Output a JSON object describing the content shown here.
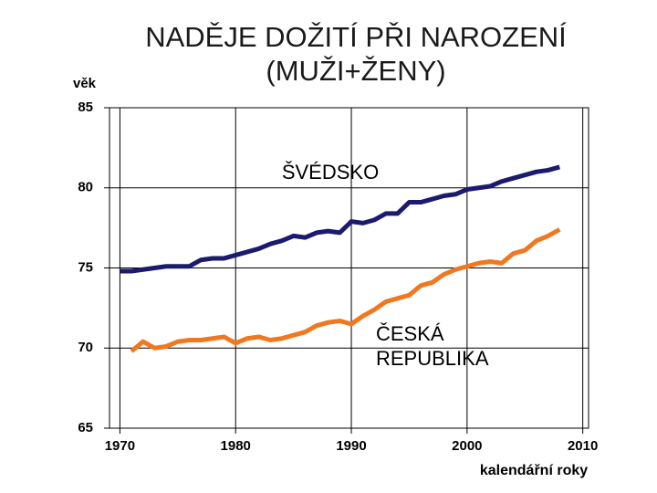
{
  "chart_data": {
    "type": "line",
    "title": "NADĚJE DOŽITÍ PŘI NAROZENÍ (MUŽI+ŽENY)",
    "y_label": "věk",
    "x_label": "kalendářní roky",
    "x": [
      1970,
      1971,
      1972,
      1973,
      1974,
      1975,
      1976,
      1977,
      1978,
      1979,
      1980,
      1981,
      1982,
      1983,
      1984,
      1985,
      1986,
      1987,
      1988,
      1989,
      1990,
      1991,
      1992,
      1993,
      1994,
      1995,
      1996,
      1997,
      1998,
      1999,
      2000,
      2001,
      2002,
      2003,
      2004,
      2005,
      2006,
      2007,
      2008
    ],
    "series": [
      {
        "name": "ŠVÉDSKO",
        "color": "#1c1a6e",
        "values": [
          74.8,
          74.8,
          74.9,
          75.0,
          75.1,
          75.1,
          75.1,
          75.5,
          75.6,
          75.6,
          75.8,
          76.0,
          76.2,
          76.5,
          76.7,
          77.0,
          76.9,
          77.2,
          77.3,
          77.2,
          77.9,
          77.8,
          78.0,
          78.4,
          78.4,
          79.1,
          79.1,
          79.3,
          79.5,
          79.6,
          79.9,
          80.0,
          80.1,
          80.4,
          80.6,
          80.8,
          81.0,
          81.1,
          81.3
        ]
      },
      {
        "name": "ČESKÁ REPUBLIKA",
        "color": "#f07820",
        "values": [
          null,
          69.8,
          70.4,
          70.0,
          70.1,
          70.4,
          70.5,
          70.5,
          70.6,
          70.7,
          70.3,
          70.6,
          70.7,
          70.5,
          70.6,
          70.8,
          71.0,
          71.4,
          71.6,
          71.7,
          71.5,
          72.0,
          72.4,
          72.9,
          73.1,
          73.3,
          73.9,
          74.1,
          74.6,
          74.9,
          75.1,
          75.3,
          75.4,
          75.3,
          75.9,
          76.1,
          76.7,
          77.0,
          77.4
        ]
      }
    ],
    "xlim": [
      1969.1,
      2010.5
    ],
    "xticks": [
      1970,
      1980,
      1990,
      2000,
      2010
    ],
    "ylim": [
      65,
      85
    ],
    "yticks": [
      65,
      70,
      75,
      80,
      85
    ],
    "grid": true
  }
}
